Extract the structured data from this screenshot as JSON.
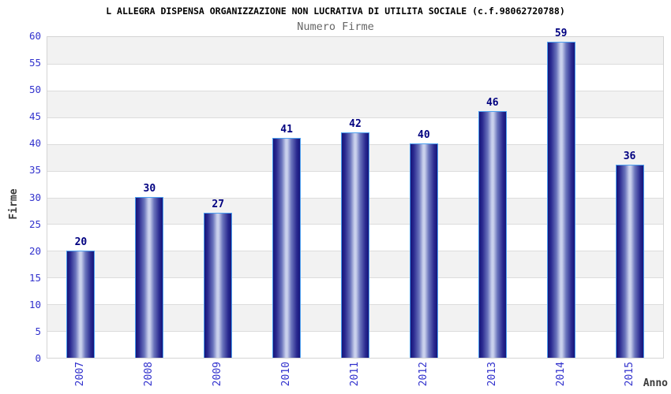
{
  "chart_data": {
    "type": "bar",
    "title": "L ALLEGRA DISPENSA ORGANIZZAZIONE NON LUCRATIVA DI UTILITA SOCIALE (c.f.98062720788)",
    "subtitle": "Numero Firme",
    "xlabel": "Anno",
    "ylabel": "Firme",
    "categories": [
      "2007",
      "2008",
      "2009",
      "2010",
      "2011",
      "2012",
      "2013",
      "2014",
      "2015"
    ],
    "values": [
      20,
      30,
      27,
      41,
      42,
      40,
      46,
      59,
      36
    ],
    "ylim": [
      0,
      60
    ],
    "ytick_step": 5,
    "grid": "alternating horizontal bands with light gray separator lines",
    "legend": "none"
  },
  "colors": {
    "background": "#ffffff",
    "band_gray": "#f2f2f2",
    "band_white": "#ffffff",
    "grid_line": "#dcdcdc",
    "plot_border": "#d4d4d4",
    "tick_label_blue": "#3232cd",
    "value_label_navy": "#000080",
    "bar_border_lightblue": "#4da0f0",
    "bar_gradient": [
      "#15157a",
      "#2a2a90",
      "#6a74bc",
      "#c9d0ec"
    ],
    "title_color": "#000000",
    "subtitle_color": "#666666",
    "axis_title_color": "#3c3c3c"
  }
}
